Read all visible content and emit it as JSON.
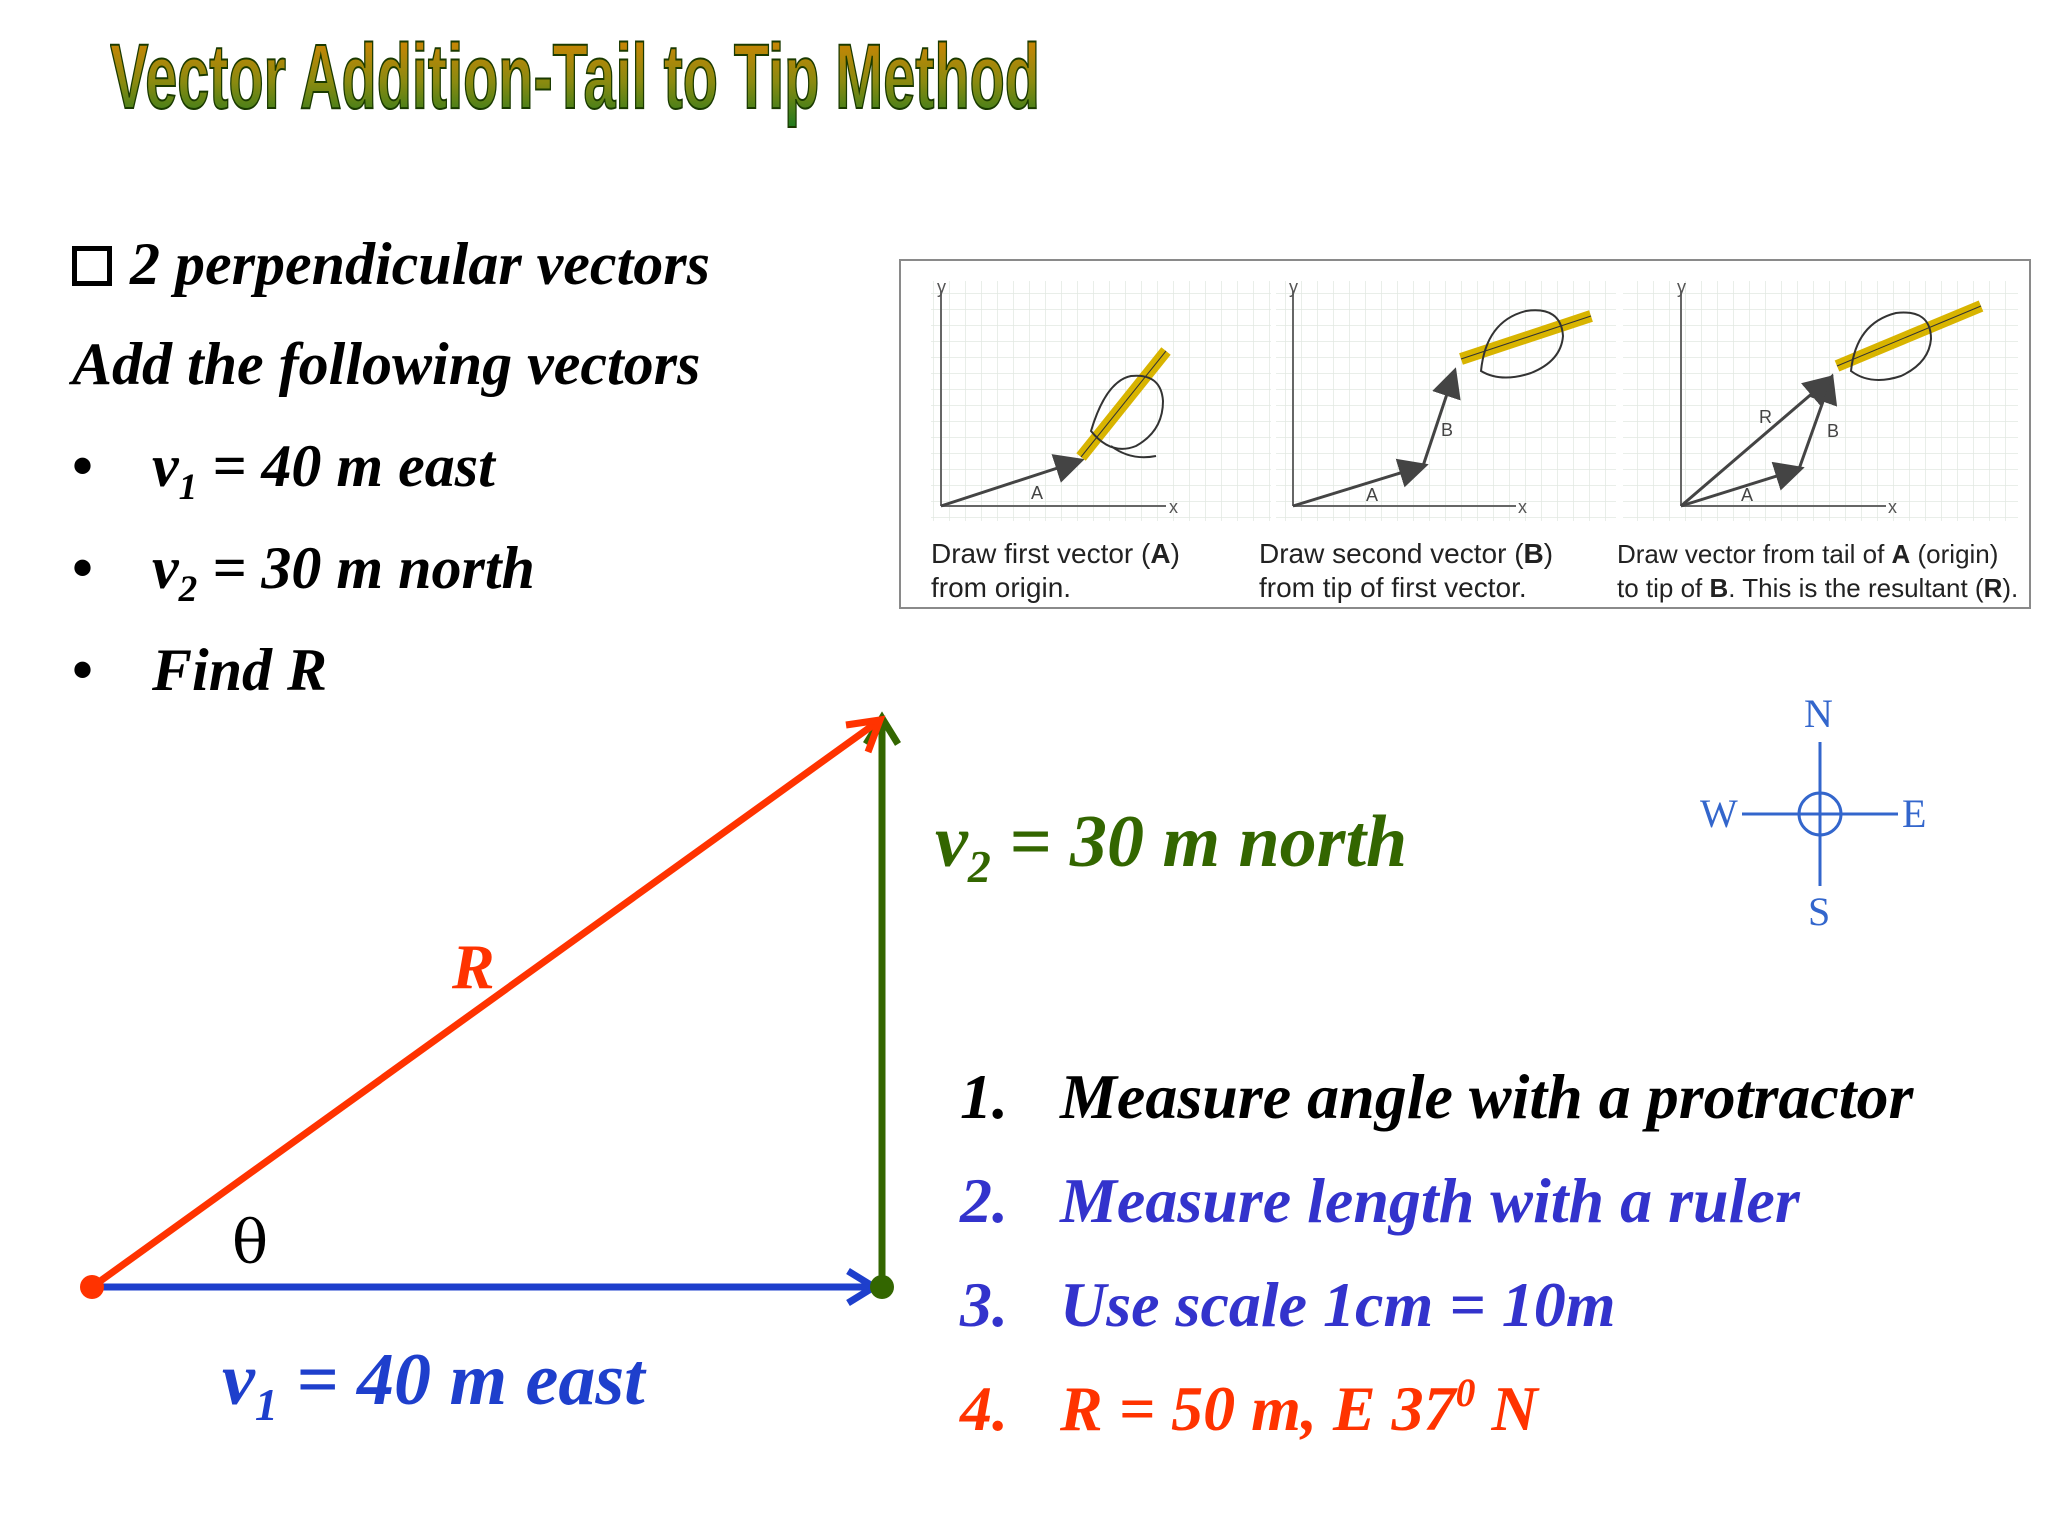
{
  "slide": {
    "title": "Vector Addition-Tail to Tip Method",
    "bullets": {
      "heading": "2 perpendicular vectors",
      "intro": "Add the following vectors",
      "items": [
        {
          "var": "v",
          "sub": "1",
          "text": " = 40 m east"
        },
        {
          "var": "v",
          "sub": "2",
          "text": " = 30 m north"
        },
        {
          "text": "Find R"
        }
      ]
    },
    "figure": {
      "captions": [
        {
          "pre": "Draw first vector (",
          "bold": "A",
          "post": ")",
          "line2": "from origin."
        },
        {
          "pre": "Draw second vector (",
          "bold": "B",
          "post": ")",
          "line2": "from tip of first vector."
        },
        {
          "pre": "Draw vector from tail of ",
          "bold": "A",
          "post": " (origin)",
          "line2pre": "to tip of ",
          "line2bold": "B",
          "line2post": ". This is the resultant (",
          "line2bold2": "R",
          "line2post2": ")."
        }
      ],
      "axis_x": "x",
      "axis_y": "y",
      "vec_a": "A",
      "vec_b": "B",
      "vec_r": "R"
    },
    "diagram": {
      "r_label": "R",
      "theta": "θ",
      "v1": {
        "var": "v",
        "sub": "1",
        "text": " = 40 m east"
      },
      "v2": {
        "var": "v",
        "sub": "2",
        "text": " = 30 m north"
      }
    },
    "compass": {
      "n": "N",
      "s": "S",
      "e": "E",
      "w": "W"
    },
    "steps": [
      {
        "num": "1.",
        "text": "Measure angle with  a protractor",
        "color": "#000000"
      },
      {
        "num": "2.",
        "text": "Measure length with a ruler",
        "color": "#3333cc"
      },
      {
        "num": "3.",
        "text": "Use scale 1cm = 10m",
        "color": "#3333cc"
      },
      {
        "num": "4.",
        "text": "R = 50 m,  E 37",
        "sup": "0",
        "tail": " N",
        "color": "#ff3300"
      }
    ]
  },
  "colors": {
    "title_fill_top": "#e68a00",
    "title_fill_bottom": "#1f7a1f",
    "resultant": "#ff3300",
    "v1": "#1e3fcc",
    "v2": "#336600",
    "compass": "#3366cc",
    "grid": "#e3e9e3",
    "pencil": "#d8b400"
  }
}
